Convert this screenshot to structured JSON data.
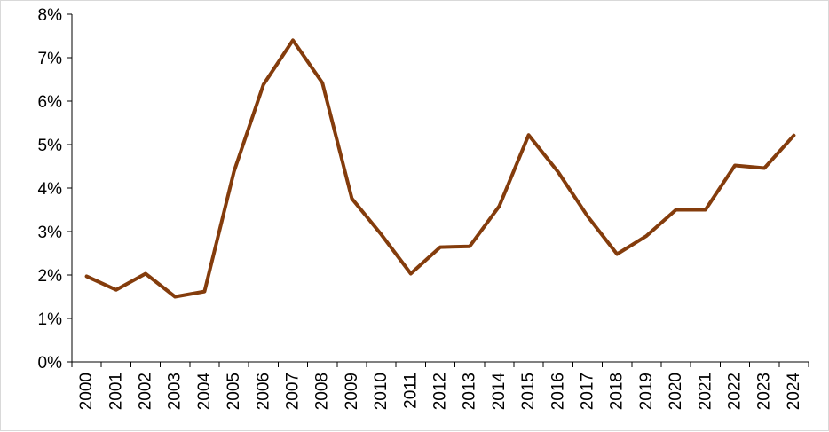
{
  "chart_data": {
    "type": "line",
    "title": "",
    "xlabel": "",
    "ylabel": "",
    "categories": [
      "2000",
      "2001",
      "2002",
      "2003",
      "2004",
      "2005",
      "2006",
      "2007",
      "2008",
      "2009",
      "2010",
      "2011",
      "2012",
      "2013",
      "2014",
      "2015",
      "2016",
      "2017",
      "2018",
      "2019",
      "2020",
      "2021",
      "2022",
      "2023",
      "2024"
    ],
    "series": [
      {
        "color": "#843c0c",
        "values": [
          1.97,
          1.66,
          2.03,
          1.5,
          1.62,
          4.38,
          6.38,
          7.4,
          6.42,
          3.76,
          2.93,
          2.03,
          2.64,
          2.66,
          3.58,
          5.22,
          4.37,
          3.35,
          2.48,
          2.9,
          3.5,
          3.5,
          4.52,
          4.46,
          5.21
        ]
      }
    ],
    "ylim": [
      0,
      8
    ],
    "y_ticks": [
      0,
      1,
      2,
      3,
      4,
      5,
      6,
      7,
      8
    ],
    "y_tick_labels": [
      "0%",
      "1%",
      "2%",
      "3%",
      "4%",
      "5%",
      "6%",
      "7%",
      "8%"
    ],
    "grid": false,
    "legend": "none"
  }
}
